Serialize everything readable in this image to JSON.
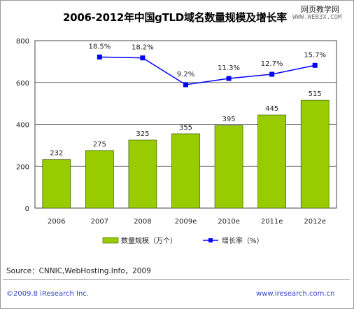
{
  "title": "2006-2012年中国gTLD域名数量规模及增长率",
  "watermark": {
    "line1": "网页教学网",
    "line2": "WWW.WEB3X.COM"
  },
  "chart_data": {
    "type": "bar",
    "categories": [
      "2006",
      "2007",
      "2008",
      "2009e",
      "2010e",
      "2011e",
      "2012e"
    ],
    "ylim": [
      0,
      800
    ],
    "yticks": [
      "0",
      "200",
      "400",
      "600",
      "800"
    ],
    "series": [
      {
        "name": "数量规模（万个）",
        "type": "bar",
        "values": [
          232,
          275,
          325,
          355,
          395,
          445,
          515
        ],
        "labels": [
          "232",
          "275",
          "325",
          "355",
          "395",
          "445",
          "515"
        ],
        "color": "#99cc00"
      },
      {
        "name": "增长率（%）",
        "type": "line",
        "values": [
          null,
          18.5,
          18.2,
          9.2,
          11.3,
          12.7,
          15.7
        ],
        "labels": [
          "",
          "18.5%",
          "18.2%",
          "9.2%",
          "11.3%",
          "12.7%",
          "15.7%"
        ],
        "color": "#0000ff"
      }
    ],
    "grid": true,
    "legend": "bottom"
  },
  "source": "Source：CNNIC,WebHosting.Info，2009",
  "footer": {
    "copyright": "©2009.8 iResearch Inc.",
    "site": "www.iresearch.com.cn"
  }
}
